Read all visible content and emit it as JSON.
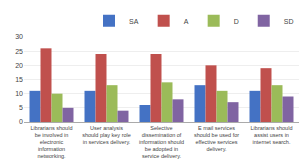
{
  "chart_data": {
    "type": "bar",
    "categories": [
      "Librarians should\nbe involved in\nelectronic\ninformation\nnetworking.",
      "User analysis\nshould play key role\nin services delivery.",
      "Selective\ndissemination of\ninformation should\nbe adopted in\nservice delivery.",
      "E mail services\nshould be used for\neffective services\ndelivery.",
      "Librarians should\nassist users in\ninternet search."
    ],
    "series": [
      {
        "name": "SA",
        "color": "#4472C4",
        "values": [
          11,
          11,
          6,
          13,
          11
        ]
      },
      {
        "name": "A",
        "color": "#C0504D",
        "values": [
          26,
          24,
          24,
          20,
          19
        ]
      },
      {
        "name": "D",
        "color": "#9BBB59",
        "values": [
          10,
          13,
          14,
          11,
          13
        ]
      },
      {
        "name": "SD",
        "color": "#8064A2",
        "values": [
          5,
          4,
          8,
          7,
          9
        ]
      }
    ],
    "ylim": [
      0,
      30
    ],
    "yticks": [
      0,
      5,
      10,
      15,
      20,
      25,
      30
    ],
    "grid": true,
    "legend": "upper right"
  }
}
